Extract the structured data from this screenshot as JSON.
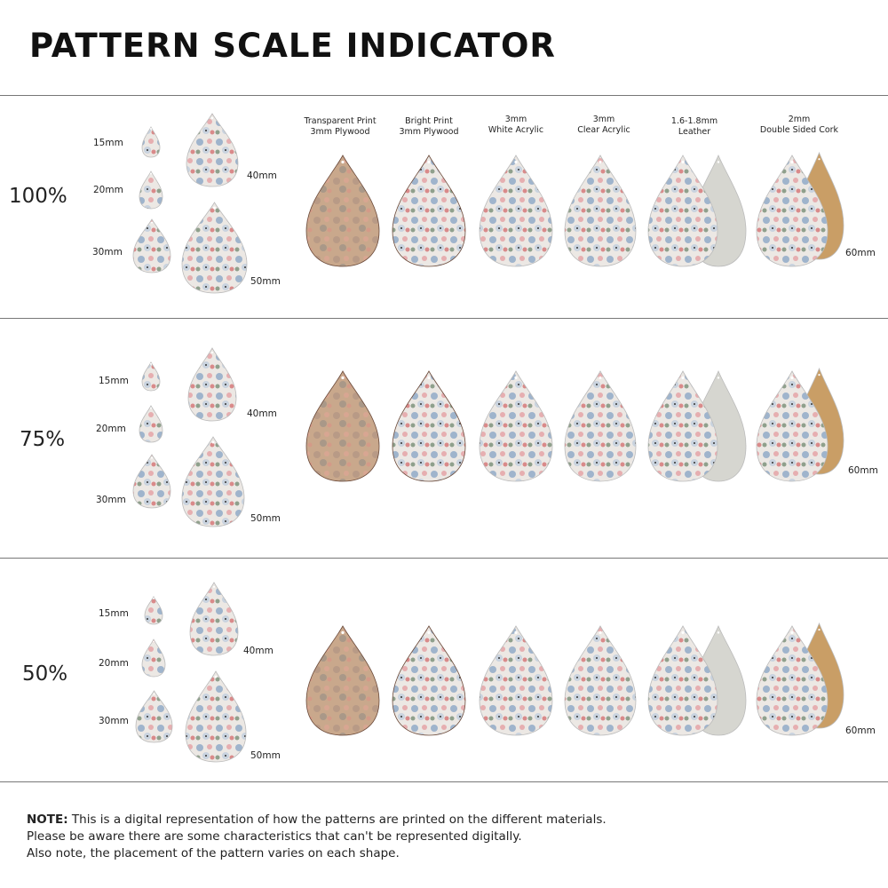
{
  "title": "PATTERN SCALE INDICATOR",
  "materials": [
    {
      "line1": "Transparent Print",
      "line2": "3mm Plywood"
    },
    {
      "line1": "Bright Print",
      "line2": "3mm Plywood"
    },
    {
      "line1": "3mm",
      "line2": "White Acrylic"
    },
    {
      "line1": "3mm",
      "line2": "Clear Acrylic"
    },
    {
      "line1": "1.6-1.8mm",
      "line2": "Leather"
    },
    {
      "line1": "2mm",
      "line2": "Double Sided Cork"
    }
  ],
  "sections": [
    {
      "scale": "100%",
      "sizes": [
        "15mm",
        "20mm",
        "30mm",
        "40mm",
        "50mm"
      ],
      "large_size": "60mm"
    },
    {
      "scale": "75%",
      "sizes": [
        "15mm",
        "20mm",
        "30mm",
        "40mm",
        "50mm"
      ],
      "large_size": "60mm"
    },
    {
      "scale": "50%",
      "sizes": [
        "15mm",
        "20mm",
        "30mm",
        "40mm",
        "50mm"
      ],
      "large_size": "60mm"
    }
  ],
  "note": {
    "label": "NOTE:",
    "line1": "This is a digital representation of how the patterns are printed on the different materials.",
    "line2": "Please be aware there are some characteristics that can't be represented digitally.",
    "line3": "Also note, the placement of the pattern varies on each shape."
  },
  "colors": {
    "plywood": "#c9a78a",
    "leather_back": "#d6d6d0",
    "cork_back": "#c99e66",
    "floral_base": "#eeeae6"
  }
}
